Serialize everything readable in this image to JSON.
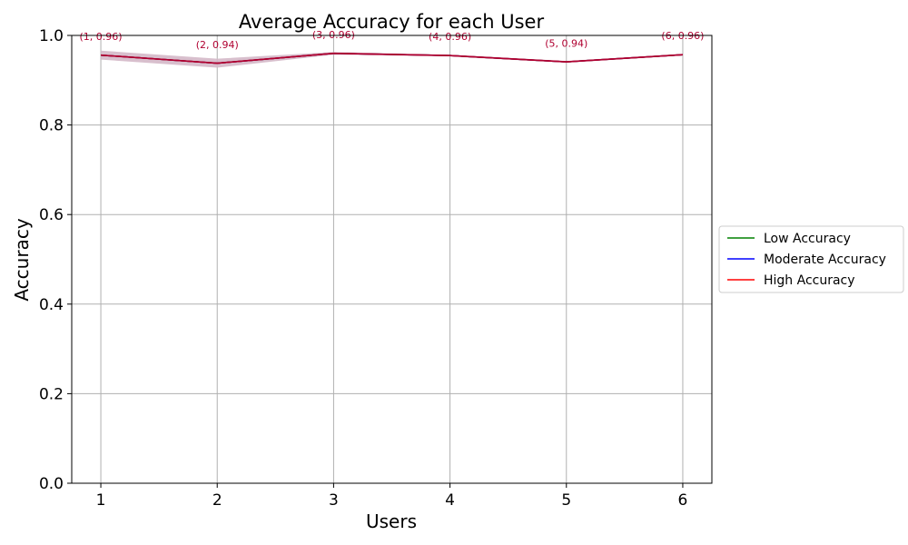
{
  "chart_data": {
    "type": "line",
    "title": "Average Accuracy for each User",
    "xlabel": "Users",
    "ylabel": "Accuracy",
    "x": [
      1,
      2,
      3,
      4,
      5,
      6
    ],
    "x_ticks": [
      "1",
      "2",
      "3",
      "4",
      "5",
      "6"
    ],
    "y_ticks": [
      "0.0",
      "0.2",
      "0.4",
      "0.6",
      "0.8",
      "1.0"
    ],
    "xlim": [
      0.75,
      6.25
    ],
    "ylim": [
      0,
      1.0
    ],
    "grid": true,
    "legend_position": "center-right outside",
    "band": {
      "lower": [
        0.946,
        0.928,
        0.957,
        0.953,
        0.939,
        0.955
      ],
      "upper": [
        0.966,
        0.948,
        0.963,
        0.957,
        0.943,
        0.959
      ],
      "color": "#d4b8c8"
    },
    "series": [
      {
        "name": "Low Accuracy",
        "color": "#008000",
        "values": [
          0.956,
          0.938,
          0.96,
          0.955,
          0.941,
          0.957
        ]
      },
      {
        "name": "Moderate Accuracy",
        "color": "#0000ff",
        "values": [
          0.956,
          0.938,
          0.96,
          0.955,
          0.941,
          0.957
        ]
      },
      {
        "name": "High Accuracy",
        "color": "#ff0000",
        "values": [
          0.956,
          0.938,
          0.96,
          0.955,
          0.941,
          0.957
        ]
      }
    ],
    "overlap_line_color": "#b00030",
    "annotations": [
      "(1, 0.96)",
      "(2, 0.94)",
      "(3, 0.96)",
      "(4, 0.96)",
      "(5, 0.94)",
      "(6, 0.96)"
    ],
    "annotation_values": [
      0.99,
      0.972,
      0.994,
      0.99,
      0.975,
      0.992
    ],
    "annotation_color": "#b00030"
  }
}
